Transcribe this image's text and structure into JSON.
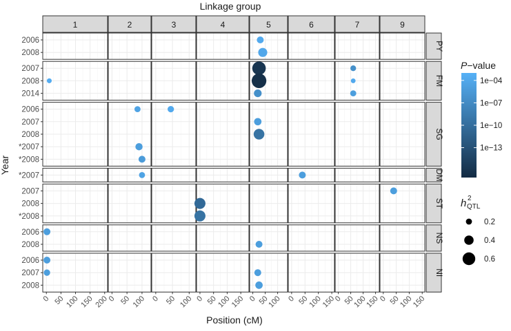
{
  "chart_data": {
    "type": "scatter",
    "title": "Linkage group",
    "xlabel": "Position (cM)",
    "ylabel": "Year",
    "columns": [
      {
        "label": "1",
        "xlim": [
          -10,
          210
        ],
        "ticks": [
          "0",
          "50",
          "100",
          "150",
          "200"
        ],
        "tickvals": [
          0,
          50,
          100,
          150,
          200
        ]
      },
      {
        "label": "2",
        "xlim": [
          -10,
          130
        ],
        "ticks": [
          "0",
          "50",
          "100"
        ],
        "tickvals": [
          0,
          50,
          100
        ]
      },
      {
        "label": "3",
        "xlim": [
          -10,
          120
        ],
        "ticks": [
          "0",
          "50",
          "100"
        ],
        "tickvals": [
          0,
          50,
          100
        ]
      },
      {
        "label": "4",
        "xlim": [
          -10,
          180
        ],
        "ticks": [
          "0",
          "50",
          "100",
          "150"
        ],
        "tickvals": [
          0,
          50,
          100,
          150
        ]
      },
      {
        "label": "5",
        "xlim": [
          -10,
          140
        ],
        "ticks": [
          "0",
          "50",
          "100"
        ],
        "tickvals": [
          0,
          50,
          100
        ]
      },
      {
        "label": "6",
        "xlim": [
          -10,
          160
        ],
        "ticks": [
          "0",
          "50",
          "100",
          "150"
        ],
        "tickvals": [
          0,
          50,
          100,
          150
        ]
      },
      {
        "label": "7",
        "xlim": [
          -10,
          165
        ],
        "ticks": [
          "0",
          "50",
          "100",
          "150"
        ],
        "tickvals": [
          0,
          50,
          100,
          150
        ]
      },
      {
        "label": "9",
        "xlim": [
          -10,
          160
        ],
        "ticks": [
          "0",
          "50",
          "100",
          "150"
        ],
        "tickvals": [
          0,
          50,
          100,
          150
        ]
      }
    ],
    "rows": [
      {
        "label": "PY",
        "years": [
          "2006",
          "2008"
        ]
      },
      {
        "label": "FM",
        "years": [
          "2007",
          "2008",
          "2014"
        ]
      },
      {
        "label": "SG",
        "years": [
          "2006",
          "2007",
          "2008",
          "*2007",
          "*2008"
        ]
      },
      {
        "label": "DM",
        "years": [
          "*2007"
        ]
      },
      {
        "label": "ST",
        "years": [
          "2007",
          "2008",
          "*2008"
        ]
      },
      {
        "label": "NS",
        "years": [
          "2006",
          "2008"
        ]
      },
      {
        "label": "NI",
        "years": [
          "2006",
          "2007",
          "2008"
        ]
      }
    ],
    "points": [
      {
        "trait": "PY",
        "year": "2006",
        "group": "5",
        "position": 30,
        "log10p": -3.8,
        "h2": 0.25
      },
      {
        "trait": "PY",
        "year": "2008",
        "group": "5",
        "position": 40,
        "log10p": -4.0,
        "h2": 0.38
      },
      {
        "trait": "FM",
        "year": "2007",
        "group": "5",
        "position": 25,
        "log10p": -16.0,
        "h2": 0.65
      },
      {
        "trait": "FM",
        "year": "2008",
        "group": "5",
        "position": 25,
        "log10p": -16.5,
        "h2": 0.72
      },
      {
        "trait": "FM",
        "year": "2014",
        "group": "5",
        "position": 20,
        "log10p": -6.5,
        "h2": 0.3
      },
      {
        "trait": "FM",
        "year": "2008",
        "group": "1",
        "position": 10,
        "log10p": -3.5,
        "h2": 0.13
      },
      {
        "trait": "FM",
        "year": "2007",
        "group": "7",
        "position": 60,
        "log10p": -6.5,
        "h2": 0.18
      },
      {
        "trait": "FM",
        "year": "2008",
        "group": "7",
        "position": 60,
        "log10p": -3.8,
        "h2": 0.12
      },
      {
        "trait": "FM",
        "year": "2014",
        "group": "7",
        "position": 60,
        "log10p": -5.0,
        "h2": 0.2
      },
      {
        "trait": "SG",
        "year": "2006",
        "group": "2",
        "position": 85,
        "log10p": -4.5,
        "h2": 0.2
      },
      {
        "trait": "SG",
        "year": "2006",
        "group": "3",
        "position": 45,
        "log10p": -3.8,
        "h2": 0.22
      },
      {
        "trait": "SG",
        "year": "2007",
        "group": "5",
        "position": 20,
        "log10p": -5.0,
        "h2": 0.28
      },
      {
        "trait": "SG",
        "year": "2008",
        "group": "5",
        "position": 25,
        "log10p": -9.5,
        "h2": 0.48
      },
      {
        "trait": "SG",
        "year": "*2007",
        "group": "2",
        "position": 90,
        "log10p": -5.0,
        "h2": 0.27
      },
      {
        "trait": "SG",
        "year": "*2008",
        "group": "2",
        "position": 100,
        "log10p": -5.3,
        "h2": 0.25
      },
      {
        "trait": "DM",
        "year": "*2007",
        "group": "2",
        "position": 100,
        "log10p": -4.5,
        "h2": 0.2
      },
      {
        "trait": "DM",
        "year": "*2007",
        "group": "6",
        "position": 40,
        "log10p": -5.0,
        "h2": 0.25
      },
      {
        "trait": "ST",
        "year": "2007",
        "group": "9",
        "position": 40,
        "log10p": -5.0,
        "h2": 0.25
      },
      {
        "trait": "ST",
        "year": "2008",
        "group": "4",
        "position": 0,
        "log10p": -10.5,
        "h2": 0.5
      },
      {
        "trait": "ST",
        "year": "*2008",
        "group": "4",
        "position": 0,
        "log10p": -9.5,
        "h2": 0.5
      },
      {
        "trait": "NS",
        "year": "2006",
        "group": "1",
        "position": 2,
        "log10p": -5.0,
        "h2": 0.25
      },
      {
        "trait": "NS",
        "year": "2008",
        "group": "5",
        "position": 25,
        "log10p": -5.0,
        "h2": 0.25
      },
      {
        "trait": "NI",
        "year": "2006",
        "group": "1",
        "position": 2,
        "log10p": -5.0,
        "h2": 0.25
      },
      {
        "trait": "NI",
        "year": "2007",
        "group": "1",
        "position": 2,
        "log10p": -5.0,
        "h2": 0.22
      },
      {
        "trait": "NI",
        "year": "2007",
        "group": "5",
        "position": 20,
        "log10p": -5.0,
        "h2": 0.25
      },
      {
        "trait": "NI",
        "year": "2008",
        "group": "5",
        "position": 25,
        "log10p": -5.0,
        "h2": 0.28
      }
    ],
    "color_legend": {
      "title": "P−value",
      "ticks": [
        "1e−04",
        "1e−07",
        "1e−10",
        "1e−13"
      ],
      "tickvals": [
        -4,
        -7,
        -10,
        -13
      ],
      "range": [
        -17,
        -3
      ],
      "low_color": "#132b43",
      "high_color": "#56b1f7"
    },
    "size_legend": {
      "title": "h",
      "title_sup": "2",
      "title_sub": "QTL",
      "values": [
        0.2,
        0.4,
        0.6
      ],
      "labels": [
        "0.2",
        "0.4",
        "0.6"
      ]
    },
    "grid": true,
    "legend_position": "right"
  }
}
